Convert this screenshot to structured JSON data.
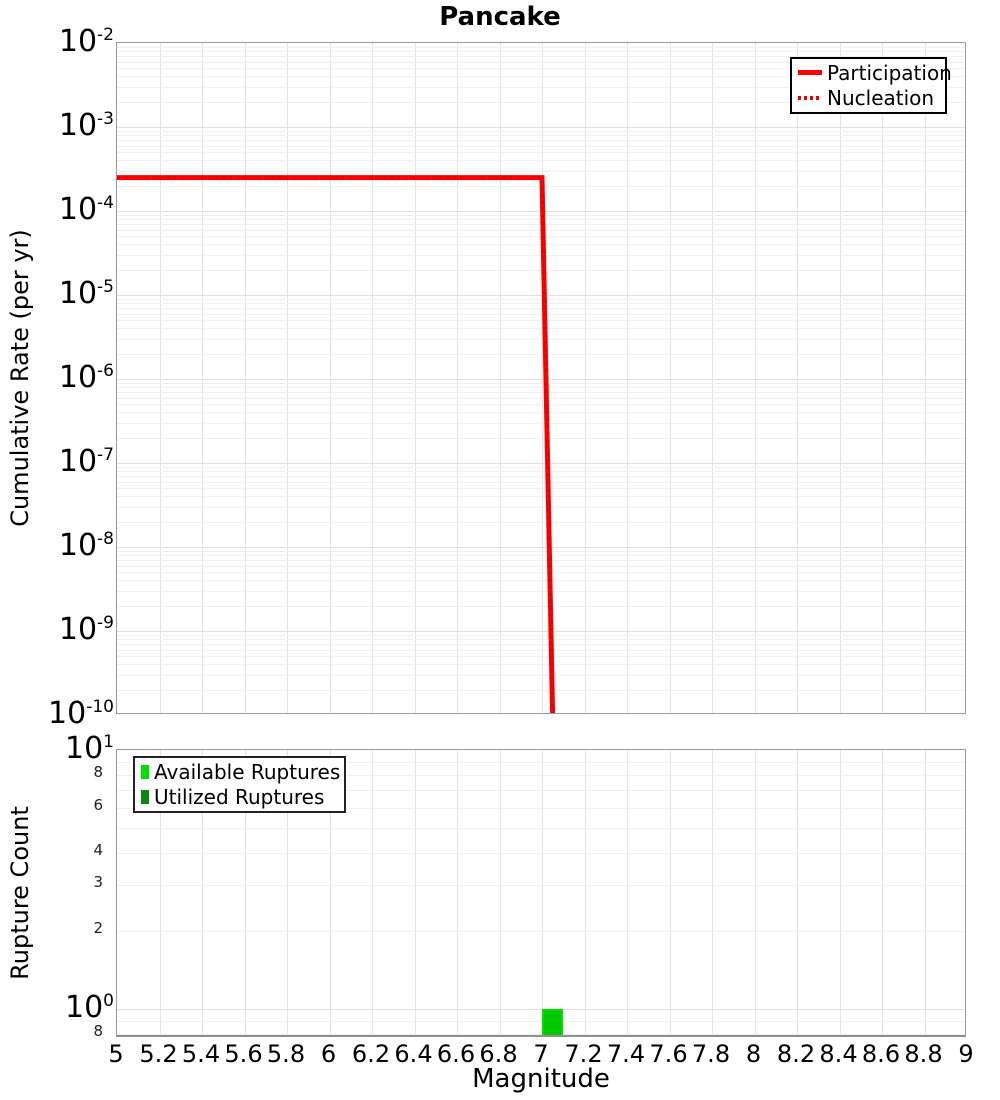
{
  "figure": {
    "background": "#ffffff",
    "title": "Pancake"
  },
  "chart_data": [
    {
      "type": "line",
      "title": "Pancake",
      "xlabel": "",
      "ylabel": "Cumulative Rate (per yr)",
      "xlim": [
        5,
        9
      ],
      "ylim": [
        1e-10,
        0.01
      ],
      "y_scale": "log",
      "grid": true,
      "legend_position": "top-right",
      "y_ticks": [
        {
          "value": 0.01,
          "exp": "-2"
        },
        {
          "value": 0.001,
          "exp": "-3"
        },
        {
          "value": 0.0001,
          "exp": "-4"
        },
        {
          "value": 1e-05,
          "exp": "-5"
        },
        {
          "value": 1e-06,
          "exp": "-6"
        },
        {
          "value": 1e-07,
          "exp": "-7"
        },
        {
          "value": 1e-08,
          "exp": "-8"
        },
        {
          "value": 1e-09,
          "exp": "-9"
        },
        {
          "value": 1e-10,
          "exp": "-10"
        }
      ],
      "series": [
        {
          "name": "Participation",
          "color": "#ff0000",
          "style": "solid",
          "width": 5,
          "points": [
            [
              5.0,
              0.00025
            ],
            [
              7.0,
              0.00025
            ],
            [
              7.05,
              1e-10
            ]
          ]
        },
        {
          "name": "Nucleation",
          "color": "#e60000",
          "style": "dotted",
          "width": 3,
          "points": [
            [
              5.0,
              0.00025
            ],
            [
              7.0,
              0.00025
            ],
            [
              7.05,
              1e-10
            ]
          ]
        }
      ]
    },
    {
      "type": "bar",
      "title": "",
      "xlabel": "Magnitude",
      "ylabel": "Rupture Count",
      "xlim": [
        5,
        9
      ],
      "ylim": [
        0.773,
        10
      ],
      "y_scale": "log",
      "grid": true,
      "legend_position": "top-left",
      "x_tick_labels": [
        "5",
        "5.2",
        "5.4",
        "5.6",
        "5.8",
        "6",
        "6.2",
        "6.4",
        "6.6",
        "6.8",
        "7",
        "7.2",
        "7.4",
        "7.6",
        "7.8",
        "8",
        "8.2",
        "8.4",
        "8.6",
        "8.8",
        "9"
      ],
      "y_ticks": [
        {
          "value": 10,
          "exp": "1",
          "type": "major"
        },
        {
          "value": 8,
          "label": "8",
          "type": "minor"
        },
        {
          "value": 6,
          "label": "6",
          "type": "minor"
        },
        {
          "value": 4,
          "label": "4",
          "type": "minor"
        },
        {
          "value": 3,
          "label": "3",
          "type": "minor"
        },
        {
          "value": 2,
          "label": "2",
          "type": "minor"
        },
        {
          "value": 1,
          "exp": "0",
          "type": "major"
        },
        {
          "value": 0.8,
          "label": "8",
          "type": "minor"
        }
      ],
      "minor_gridline_values": [
        9,
        8,
        7,
        6,
        5,
        4,
        3,
        2,
        0.9,
        0.8
      ],
      "series": [
        {
          "name": "Available Ruptures",
          "color": "#00c800",
          "edge_color": "#00e000",
          "bins": [
            {
              "center": 7.05,
              "width": 0.1,
              "count": 1
            }
          ]
        },
        {
          "name": "Utilized Ruptures",
          "color": "#0d870d",
          "edge_color": "#0a6e0a",
          "bins": [
            {
              "center": 7.05,
              "width": 0.1,
              "count": 1
            }
          ]
        }
      ]
    }
  ]
}
